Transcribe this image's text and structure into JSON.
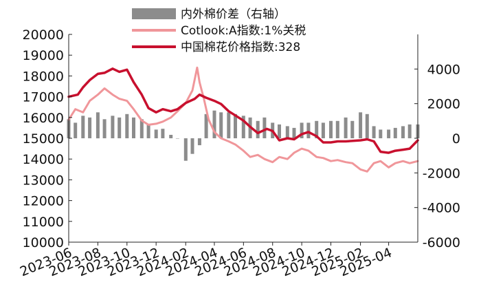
{
  "chart_data": {
    "type": "line",
    "title": "",
    "legend": {
      "placement": "top-center",
      "entries": [
        {
          "key": "spread",
          "label": "内外棉价差（右轴）",
          "style": "bar"
        },
        {
          "key": "cotlook",
          "label": "Cotlook:A指数:1%关税",
          "style": "line"
        },
        {
          "key": "china",
          "label": "中国棉花价格指数:328",
          "style": "line"
        }
      ]
    },
    "x_axis": {
      "labels": [
        "2023-06",
        "2023-08",
        "2023-10",
        "2023-12",
        "2024-02",
        "2024-04",
        "2024-06",
        "2024-08",
        "2024-10",
        "2024-12",
        "2025-02",
        "2025-04"
      ],
      "range": [
        "2023-06",
        "2025-06"
      ]
    },
    "y_left": {
      "range": [
        10000,
        20000
      ],
      "ticks": [
        "10000",
        "11000",
        "12000",
        "13000",
        "14000",
        "15000",
        "16000",
        "17000",
        "18000",
        "19000",
        "20000"
      ]
    },
    "y_right": {
      "range": [
        -6000,
        6000
      ],
      "ticks": [
        "-6000",
        "-4000",
        "-2000",
        "0",
        "2000",
        "4000"
      ]
    },
    "grid": false,
    "series": [
      {
        "name": "中国棉花价格指数:328",
        "axis": "left",
        "color": "#c8102e",
        "points": [
          [
            "2023-06",
            17000
          ],
          [
            "2023-06-20",
            17100
          ],
          [
            "2023-07",
            17450
          ],
          [
            "2023-07-15",
            17800
          ],
          [
            "2023-08",
            18100
          ],
          [
            "2023-08-15",
            18150
          ],
          [
            "2023-09",
            18350
          ],
          [
            "2023-09-15",
            18200
          ],
          [
            "2023-10",
            18300
          ],
          [
            "2023-10-15",
            17700
          ],
          [
            "2023-11",
            17100
          ],
          [
            "2023-11-15",
            16450
          ],
          [
            "2023-12",
            16250
          ],
          [
            "2023-12-15",
            16400
          ],
          [
            "2024-01",
            16300
          ],
          [
            "2024-01-15",
            16400
          ],
          [
            "2024-02",
            16700
          ],
          [
            "2024-02-20",
            16900
          ],
          [
            "2024-03",
            17100
          ],
          [
            "2024-03-15",
            16950
          ],
          [
            "2024-04",
            16800
          ],
          [
            "2024-04-15",
            16650
          ],
          [
            "2024-05",
            16300
          ],
          [
            "2024-05-15",
            16100
          ],
          [
            "2024-06",
            15850
          ],
          [
            "2024-06-15",
            15550
          ],
          [
            "2024-07",
            15250
          ],
          [
            "2024-07-20",
            15450
          ],
          [
            "2024-08",
            15350
          ],
          [
            "2024-08-15",
            14900
          ],
          [
            "2024-09",
            15000
          ],
          [
            "2024-09-15",
            14950
          ],
          [
            "2024-10",
            15200
          ],
          [
            "2024-10-15",
            15300
          ],
          [
            "2024-11",
            15100
          ],
          [
            "2024-11-15",
            14800
          ],
          [
            "2024-12",
            14800
          ],
          [
            "2024-12-15",
            14850
          ],
          [
            "2025-01",
            14850
          ],
          [
            "2025-02",
            14900
          ],
          [
            "2025-02-15",
            14950
          ],
          [
            "2025-03",
            14850
          ],
          [
            "2025-03-15",
            14350
          ],
          [
            "2025-04",
            14300
          ],
          [
            "2025-04-15",
            14400
          ],
          [
            "2025-05",
            14450
          ],
          [
            "2025-05-15",
            14500
          ],
          [
            "2025-06",
            14900
          ]
        ]
      },
      {
        "name": "Cotlook:A指数:1%关税",
        "axis": "left",
        "color": "#f0969a",
        "points": [
          [
            "2023-06",
            15900
          ],
          [
            "2023-06-15",
            16400
          ],
          [
            "2023-07",
            16250
          ],
          [
            "2023-07-15",
            16800
          ],
          [
            "2023-08",
            17100
          ],
          [
            "2023-08-15",
            17400
          ],
          [
            "2023-09",
            17100
          ],
          [
            "2023-09-15",
            16900
          ],
          [
            "2023-10",
            16800
          ],
          [
            "2023-10-15",
            16400
          ],
          [
            "2023-11",
            15850
          ],
          [
            "2023-11-15",
            15650
          ],
          [
            "2023-12",
            15700
          ],
          [
            "2023-12-15",
            15800
          ],
          [
            "2024-01",
            16000
          ],
          [
            "2024-01-15",
            16300
          ],
          [
            "2024-02",
            16700
          ],
          [
            "2024-02-15",
            17300
          ],
          [
            "2024-02-25",
            18400
          ],
          [
            "2024-03",
            17700
          ],
          [
            "2024-03-10",
            16900
          ],
          [
            "2024-03-20",
            15900
          ],
          [
            "2024-04",
            15300
          ],
          [
            "2024-04-15",
            15000
          ],
          [
            "2024-05",
            14850
          ],
          [
            "2024-05-15",
            14700
          ],
          [
            "2024-06",
            14400
          ],
          [
            "2024-06-15",
            14100
          ],
          [
            "2024-07",
            14200
          ],
          [
            "2024-07-15",
            14000
          ],
          [
            "2024-08",
            13850
          ],
          [
            "2024-08-15",
            14100
          ],
          [
            "2024-09",
            14000
          ],
          [
            "2024-09-15",
            14300
          ],
          [
            "2024-10",
            14500
          ],
          [
            "2024-10-15",
            14400
          ],
          [
            "2024-11",
            14100
          ],
          [
            "2024-11-15",
            14050
          ],
          [
            "2024-12",
            13900
          ],
          [
            "2024-12-15",
            13950
          ],
          [
            "2025-01",
            13850
          ],
          [
            "2025-01-15",
            13800
          ],
          [
            "2025-02",
            13500
          ],
          [
            "2025-02-15",
            13400
          ],
          [
            "2025-03",
            13800
          ],
          [
            "2025-03-15",
            13900
          ],
          [
            "2025-04",
            13600
          ],
          [
            "2025-04-15",
            13800
          ],
          [
            "2025-05",
            13900
          ],
          [
            "2025-05-15",
            13800
          ],
          [
            "2025-06",
            13900
          ]
        ]
      },
      {
        "name": "内外棉价差（右轴）",
        "axis": "right",
        "color": "#8c8c8c",
        "type": "bar",
        "points": [
          [
            "2023-06",
            1100
          ],
          [
            "2023-06-15",
            900
          ],
          [
            "2023-07",
            1300
          ],
          [
            "2023-07-15",
            1200
          ],
          [
            "2023-08",
            1500
          ],
          [
            "2023-08-15",
            1100
          ],
          [
            "2023-09",
            1300
          ],
          [
            "2023-09-15",
            1200
          ],
          [
            "2023-10",
            1400
          ],
          [
            "2023-10-15",
            1200
          ],
          [
            "2023-11",
            1100
          ],
          [
            "2023-11-15",
            800
          ],
          [
            "2023-12",
            500
          ],
          [
            "2023-12-15",
            550
          ],
          [
            "2024-01",
            200
          ],
          [
            "2024-01-15",
            0
          ],
          [
            "2024-02",
            -1300
          ],
          [
            "2024-02-15",
            -900
          ],
          [
            "2024-03",
            -400
          ],
          [
            "2024-03-15",
            1400
          ],
          [
            "2024-04",
            1600
          ],
          [
            "2024-04-15",
            1500
          ],
          [
            "2024-05",
            1500
          ],
          [
            "2024-05-15",
            1400
          ],
          [
            "2024-06",
            1300
          ],
          [
            "2024-06-15",
            1200
          ],
          [
            "2024-07",
            1000
          ],
          [
            "2024-07-15",
            1200
          ],
          [
            "2024-08",
            900
          ],
          [
            "2024-08-15",
            800
          ],
          [
            "2024-09",
            700
          ],
          [
            "2024-09-15",
            600
          ],
          [
            "2024-10",
            900
          ],
          [
            "2024-10-15",
            900
          ],
          [
            "2024-11",
            1000
          ],
          [
            "2024-11-15",
            900
          ],
          [
            "2024-12",
            1000
          ],
          [
            "2024-12-15",
            1000
          ],
          [
            "2025-01",
            1200
          ],
          [
            "2025-01-15",
            1000
          ],
          [
            "2025-02",
            1500
          ],
          [
            "2025-02-15",
            1400
          ],
          [
            "2025-03",
            700
          ],
          [
            "2025-03-15",
            500
          ],
          [
            "2025-04",
            500
          ],
          [
            "2025-04-15",
            600
          ],
          [
            "2025-05",
            700
          ],
          [
            "2025-05-15",
            800
          ],
          [
            "2025-06",
            800
          ]
        ]
      }
    ]
  }
}
